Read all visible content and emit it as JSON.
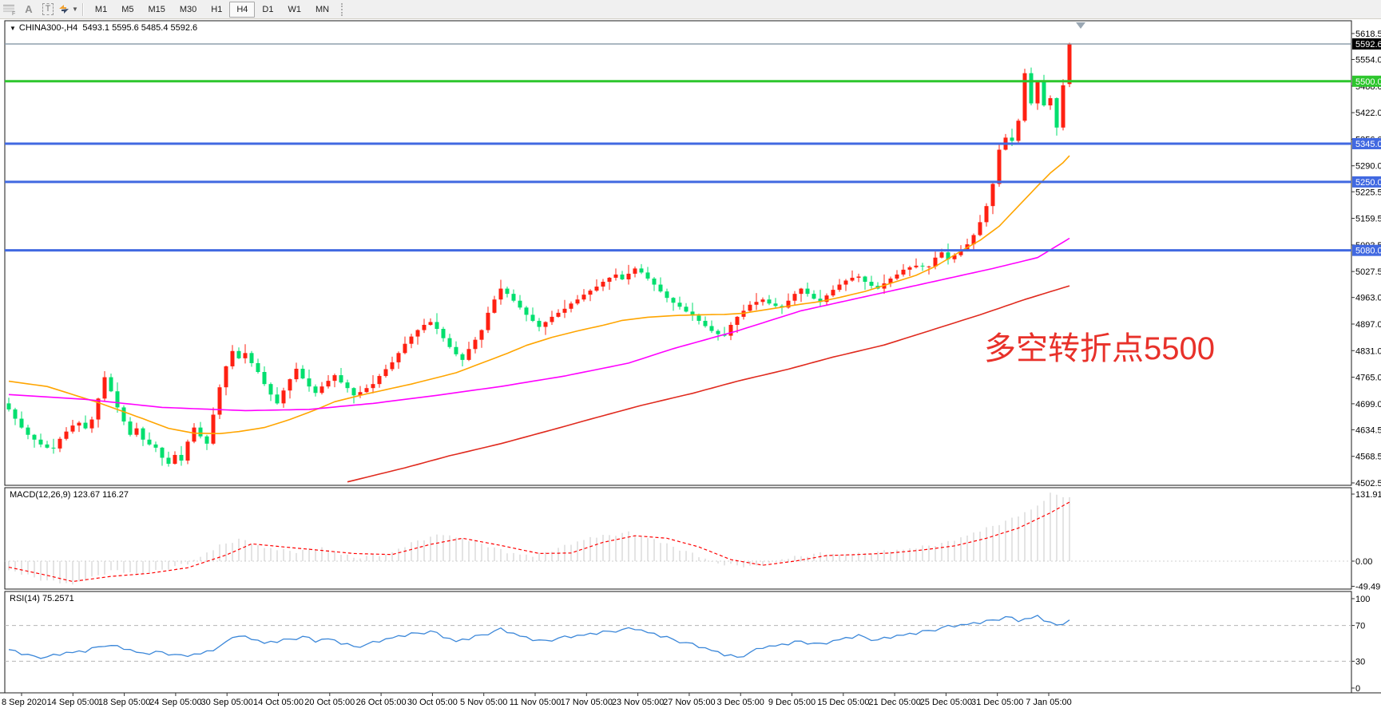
{
  "toolbar": {
    "grip_icon_letter": "F",
    "label_tool": "A",
    "text_tool": "T",
    "timeframes": [
      {
        "label": "M1",
        "active": false
      },
      {
        "label": "M5",
        "active": false
      },
      {
        "label": "M15",
        "active": false
      },
      {
        "label": "M30",
        "active": false
      },
      {
        "label": "H1",
        "active": false
      },
      {
        "label": "H4",
        "active": true
      },
      {
        "label": "D1",
        "active": false
      },
      {
        "label": "W1",
        "active": false
      },
      {
        "label": "MN",
        "active": false
      }
    ]
  },
  "chart": {
    "title_symbol": "CHINA300-,H4",
    "title_quote": "5493.1 5595.6 5485.4 5592.6",
    "annotation": "多空转折点5500",
    "annotation_color": "#e8312a",
    "colors": {
      "bull": "#ff2012",
      "bear": "#00df6e",
      "level_green": "#2dc62d",
      "level_blue": "#4169e1",
      "ma_orange": "#ffa500",
      "ma_magenta": "#ff00ff",
      "ma_red": "#e02a1e",
      "rsi_line": "#3b87d9",
      "macd_hist": "#c9c9c9",
      "macd_signal": "#ff0000",
      "current_line": "#8496a5",
      "current_box_bg": "#000000",
      "frame": "#1a1a1a"
    },
    "price_axis": {
      "ticks": [
        5618.5,
        5554.0,
        5488.0,
        5422.0,
        5356.0,
        5290.0,
        5225.5,
        5159.5,
        5093.5,
        5027.5,
        4963.0,
        4897.0,
        4831.0,
        4765.0,
        4699.0,
        4634.5,
        4568.5,
        4502.5
      ],
      "current_label": "5592.6"
    },
    "time_axis": {
      "labels": [
        "8 Sep 2020",
        "14 Sep 05:00",
        "18 Sep 05:00",
        "24 Sep 05:00",
        "30 Sep 05:00",
        "14 Oct 05:00",
        "20 Oct 05:00",
        "26 Oct 05:00",
        "30 Oct 05:00",
        "5 Nov 05:00",
        "11 Nov 05:00",
        "17 Nov 05:00",
        "23 Nov 05:00",
        "27 Nov 05:00",
        "3 Dec 05:00",
        "9 Dec 05:00",
        "15 Dec 05:00",
        "21 Dec 05:00",
        "25 Dec 05:00",
        "31 Dec 05:00",
        "7 Jan 05:00"
      ]
    }
  },
  "macd": {
    "label": "MACD(12,26,9)",
    "values": "123.67 116.27",
    "axis_labels": [
      "131.91",
      "0.00",
      "-49.49"
    ],
    "axis_values": [
      131.91,
      0,
      -49.49
    ]
  },
  "rsi": {
    "label": "RSI(14)",
    "value": "75.2571",
    "axis_labels": [
      "100",
      "70",
      "30",
      "0"
    ],
    "axis_values": [
      100,
      70,
      30,
      0
    ],
    "dashed_levels": [
      70,
      30
    ]
  },
  "chart_data": {
    "type": "candlestick",
    "symbol": "CHINA300-",
    "timeframe": "H4",
    "price_range": {
      "top": 5618.5,
      "bottom": 4502.5
    },
    "current_price": 5592.6,
    "ohlc_current": {
      "open": 5493.1,
      "high": 5595.6,
      "low": 5485.4,
      "close": 5592.6
    },
    "horizontal_levels": [
      {
        "price": 5500.0,
        "label": "5500.0",
        "color_key": "level_green"
      },
      {
        "price": 5345.0,
        "label": "5345.0",
        "color_key": "level_blue"
      },
      {
        "price": 5250.0,
        "label": "5250.0",
        "color_key": "level_blue"
      },
      {
        "price": 5080.0,
        "label": "5080.0",
        "color_key": "level_blue"
      }
    ],
    "first_open": 4700,
    "closes": [
      4685,
      4662,
      4640,
      4622,
      4610,
      4598,
      4590,
      4588,
      4612,
      4630,
      4645,
      4652,
      4638,
      4660,
      4712,
      4765,
      4730,
      4690,
      4655,
      4622,
      4638,
      4610,
      4598,
      4590,
      4565,
      4550,
      4572,
      4558,
      4605,
      4640,
      4618,
      4600,
      4672,
      4740,
      4792,
      4830,
      4812,
      4825,
      4800,
      4778,
      4748,
      4722,
      4700,
      4732,
      4760,
      4786,
      4762,
      4742,
      4726,
      4742,
      4756,
      4770,
      4752,
      4738,
      4720,
      4728,
      4738,
      4748,
      4768,
      4785,
      4802,
      4825,
      4848,
      4866,
      4882,
      4895,
      4902,
      4885,
      4862,
      4840,
      4822,
      4808,
      4835,
      4858,
      4882,
      4925,
      4958,
      4985,
      4972,
      4955,
      4938,
      4920,
      4905,
      4890,
      4902,
      4915,
      4925,
      4935,
      4948,
      4958,
      4970,
      4980,
      4990,
      5002,
      5012,
      5020,
      5008,
      5022,
      5035,
      5025,
      5010,
      4995,
      4978,
      4962,
      4950,
      4940,
      4928,
      4918,
      4905,
      4892,
      4880,
      4872,
      4868,
      4895,
      4915,
      4930,
      4945,
      4952,
      4958,
      4948,
      4942,
      4938,
      4955,
      4972,
      4985,
      4972,
      4960,
      4952,
      4968,
      4982,
      4995,
      5005,
      5012,
      5015,
      5002,
      4992,
      4985,
      4998,
      5010,
      5020,
      5032,
      5038,
      5042,
      5040,
      5040,
      5062,
      5075,
      5058,
      5068,
      5082,
      5095,
      5118,
      5150,
      5190,
      5245,
      5330,
      5360,
      5352,
      5402,
      5520,
      5445,
      5498,
      5440,
      5458,
      5385,
      5490,
      5592.6
    ],
    "wick_up": [
      14,
      4,
      18,
      7,
      2,
      15,
      9,
      22,
      5,
      11
    ],
    "wick_dn": [
      5,
      16,
      3,
      11,
      20,
      7,
      2,
      13,
      9,
      4
    ],
    "moving_averages": [
      {
        "name": "orange-ma",
        "color_key": "ma_orange",
        "anchors": [
          [
            0,
            4755
          ],
          [
            6,
            4742
          ],
          [
            14,
            4702
          ],
          [
            21,
            4662
          ],
          [
            25,
            4638
          ],
          [
            29,
            4626
          ],
          [
            33,
            4625
          ],
          [
            36,
            4630
          ],
          [
            40,
            4640
          ],
          [
            44,
            4660
          ],
          [
            48,
            4684
          ],
          [
            51,
            4704
          ],
          [
            55,
            4720
          ],
          [
            59,
            4734
          ],
          [
            63,
            4748
          ],
          [
            66,
            4760
          ],
          [
            70,
            4776
          ],
          [
            74,
            4800
          ],
          [
            78,
            4824
          ],
          [
            81,
            4844
          ],
          [
            85,
            4864
          ],
          [
            89,
            4880
          ],
          [
            93,
            4894
          ],
          [
            96,
            4906
          ],
          [
            100,
            4914
          ],
          [
            104,
            4918
          ],
          [
            108,
            4920
          ],
          [
            112,
            4921
          ],
          [
            115,
            4924
          ],
          [
            119,
            4934
          ],
          [
            123,
            4944
          ],
          [
            127,
            4953
          ],
          [
            130,
            4963
          ],
          [
            134,
            4978
          ],
          [
            138,
            4998
          ],
          [
            142,
            5018
          ],
          [
            145,
            5040
          ],
          [
            149,
            5078
          ],
          [
            152,
            5105
          ],
          [
            155,
            5140
          ],
          [
            158,
            5190
          ],
          [
            161,
            5240
          ],
          [
            163,
            5272
          ],
          [
            165,
            5298
          ],
          [
            166,
            5315
          ]
        ]
      },
      {
        "name": "magenta-ma",
        "color_key": "ma_magenta",
        "anchors": [
          [
            0,
            4722
          ],
          [
            12,
            4710
          ],
          [
            24,
            4690
          ],
          [
            37,
            4682
          ],
          [
            47,
            4685
          ],
          [
            57,
            4700
          ],
          [
            67,
            4720
          ],
          [
            77,
            4742
          ],
          [
            87,
            4768
          ],
          [
            97,
            4800
          ],
          [
            104,
            4836
          ],
          [
            114,
            4880
          ],
          [
            124,
            4930
          ],
          [
            134,
            4965
          ],
          [
            144,
            5000
          ],
          [
            154,
            5035
          ],
          [
            161,
            5062
          ],
          [
            166,
            5110
          ]
        ]
      },
      {
        "name": "red-ma",
        "color_key": "ma_red",
        "anchors": [
          [
            53,
            4505
          ],
          [
            62,
            4540
          ],
          [
            69,
            4570
          ],
          [
            77,
            4600
          ],
          [
            84,
            4630
          ],
          [
            92,
            4665
          ],
          [
            99,
            4695
          ],
          [
            107,
            4725
          ],
          [
            114,
            4755
          ],
          [
            122,
            4785
          ],
          [
            129,
            4815
          ],
          [
            137,
            4845
          ],
          [
            144,
            4880
          ],
          [
            152,
            4920
          ],
          [
            159,
            4958
          ],
          [
            166,
            4992
          ]
        ]
      }
    ],
    "macd": {
      "params": [
        12,
        26,
        9
      ],
      "main_last": 123.67,
      "signal_last": 116.27,
      "panel_max": 131.91,
      "panel_min": -49.49,
      "histogram_anchors": [
        [
          0,
          -18
        ],
        [
          6,
          -40
        ],
        [
          10,
          -46
        ],
        [
          16,
          -20
        ],
        [
          21,
          -26
        ],
        [
          28,
          -6
        ],
        [
          33,
          30
        ],
        [
          36,
          42
        ],
        [
          40,
          26
        ],
        [
          45,
          18
        ],
        [
          49,
          26
        ],
        [
          54,
          6
        ],
        [
          59,
          12
        ],
        [
          64,
          40
        ],
        [
          68,
          52
        ],
        [
          73,
          38
        ],
        [
          78,
          16
        ],
        [
          82,
          10
        ],
        [
          86,
          24
        ],
        [
          91,
          46
        ],
        [
          97,
          55
        ],
        [
          101,
          42
        ],
        [
          106,
          18
        ],
        [
          111,
          -6
        ],
        [
          117,
          -12
        ],
        [
          122,
          6
        ],
        [
          127,
          14
        ],
        [
          131,
          12
        ],
        [
          137,
          18
        ],
        [
          141,
          24
        ],
        [
          147,
          36
        ],
        [
          151,
          55
        ],
        [
          157,
          82
        ],
        [
          161,
          108
        ],
        [
          163,
          131.9
        ],
        [
          165,
          128
        ],
        [
          166,
          123.67
        ]
      ],
      "signal_anchors": [
        [
          0,
          -12
        ],
        [
          6,
          -28
        ],
        [
          10,
          -40
        ],
        [
          16,
          -30
        ],
        [
          22,
          -24
        ],
        [
          28,
          -13
        ],
        [
          34,
          12
        ],
        [
          38,
          34
        ],
        [
          43,
          28
        ],
        [
          49,
          21
        ],
        [
          54,
          15
        ],
        [
          60,
          13
        ],
        [
          66,
          33
        ],
        [
          71,
          45
        ],
        [
          77,
          31
        ],
        [
          83,
          15
        ],
        [
          88,
          16
        ],
        [
          93,
          37
        ],
        [
          98,
          50
        ],
        [
          103,
          45
        ],
        [
          108,
          28
        ],
        [
          113,
          3
        ],
        [
          118,
          -8
        ],
        [
          123,
          0
        ],
        [
          128,
          11
        ],
        [
          133,
          13
        ],
        [
          138,
          16
        ],
        [
          143,
          22
        ],
        [
          148,
          30
        ],
        [
          153,
          45
        ],
        [
          158,
          65
        ],
        [
          163,
          95
        ],
        [
          166,
          116.27
        ]
      ],
      "hist_jitter": [
        0,
        2,
        -2,
        4,
        1,
        -3,
        3,
        5,
        -1,
        2
      ]
    },
    "rsi": {
      "period": 14,
      "last": 75.26,
      "anchors": [
        [
          0,
          43
        ],
        [
          3,
          36
        ],
        [
          6,
          34
        ],
        [
          9,
          39
        ],
        [
          12,
          41
        ],
        [
          15,
          48
        ],
        [
          18,
          44
        ],
        [
          21,
          38
        ],
        [
          24,
          40
        ],
        [
          27,
          35
        ],
        [
          30,
          38
        ],
        [
          33,
          45
        ],
        [
          35,
          58
        ],
        [
          38,
          55
        ],
        [
          40,
          50
        ],
        [
          43,
          53
        ],
        [
          46,
          57
        ],
        [
          48,
          52
        ],
        [
          50,
          55
        ],
        [
          52,
          50
        ],
        [
          54,
          46
        ],
        [
          56,
          48
        ],
        [
          58,
          52
        ],
        [
          60,
          56
        ],
        [
          63,
          60
        ],
        [
          66,
          63
        ],
        [
          68,
          57
        ],
        [
          70,
          52
        ],
        [
          72,
          55
        ],
        [
          75,
          61
        ],
        [
          77,
          65
        ],
        [
          80,
          58
        ],
        [
          83,
          52
        ],
        [
          86,
          55
        ],
        [
          89,
          58
        ],
        [
          92,
          61
        ],
        [
          95,
          64
        ],
        [
          98,
          66
        ],
        [
          101,
          60
        ],
        [
          104,
          54
        ],
        [
          107,
          48
        ],
        [
          110,
          42
        ],
        [
          112,
          37
        ],
        [
          114,
          34
        ],
        [
          116,
          39
        ],
        [
          118,
          45
        ],
        [
          121,
          48
        ],
        [
          124,
          52
        ],
        [
          127,
          48
        ],
        [
          130,
          54
        ],
        [
          133,
          58
        ],
        [
          136,
          53
        ],
        [
          139,
          58
        ],
        [
          142,
          61
        ],
        [
          144,
          64
        ],
        [
          147,
          68
        ],
        [
          150,
          71
        ],
        [
          153,
          74
        ],
        [
          156,
          79
        ],
        [
          158,
          75
        ],
        [
          160,
          78
        ],
        [
          161,
          80
        ],
        [
          163,
          72
        ],
        [
          164,
          70
        ],
        [
          166,
          75.26
        ]
      ],
      "jitter": [
        0,
        1.3,
        -1,
        1.8,
        0.5,
        -1.5,
        0.9,
        2.2,
        -0.7,
        1.1
      ]
    }
  }
}
